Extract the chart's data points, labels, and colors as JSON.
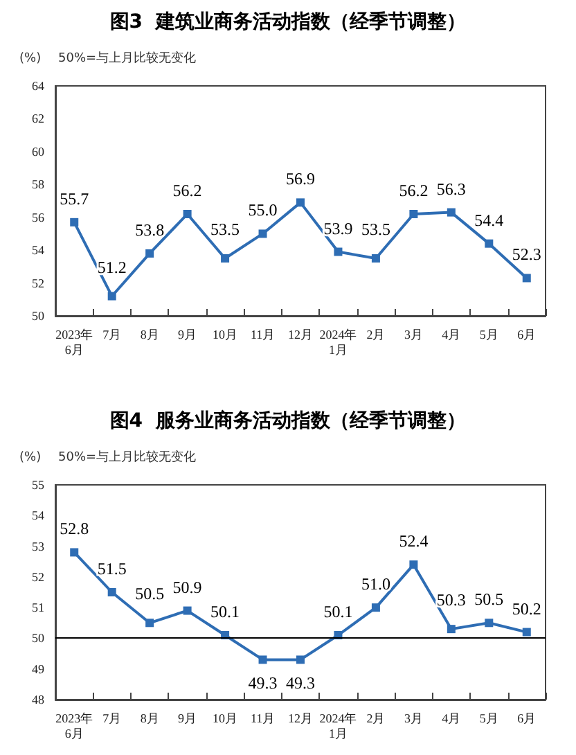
{
  "chart_data": [
    {
      "type": "line",
      "title": "图3  建筑业商务活动指数（经季节调整）",
      "ylabel": "(%)",
      "annotations": [
        "50%=与上月比较无变化"
      ],
      "categories": [
        "2023年\n6月",
        "7月",
        "8月",
        "9月",
        "10月",
        "11月",
        "12月",
        "2024年\n1月",
        "2月",
        "3月",
        "4月",
        "5月",
        "6月"
      ],
      "series": [
        {
          "color": "#2e6db4",
          "values": [
            55.7,
            51.2,
            53.8,
            56.2,
            53.5,
            55.0,
            56.9,
            53.9,
            53.5,
            56.2,
            56.3,
            54.4,
            52.3
          ],
          "value_labels": [
            "55.7",
            "51.2",
            "53.8",
            "56.2",
            "53.5",
            "55.0",
            "56.9",
            "53.9",
            "53.5",
            "56.2",
            "56.3",
            "54.4",
            "52.3"
          ]
        }
      ],
      "ylim": [
        50,
        64
      ],
      "yticks": [
        50,
        52,
        54,
        56,
        58,
        60,
        62,
        64
      ],
      "grid": false,
      "marker": "square",
      "line_style": "solid"
    },
    {
      "type": "line",
      "title": "图4  服务业商务活动指数（经季节调整）",
      "ylabel": "(%)",
      "annotations": [
        "50%=与上月比较无变化"
      ],
      "categories": [
        "2023年\n6月",
        "7月",
        "8月",
        "9月",
        "10月",
        "11月",
        "12月",
        "2024年\n1月",
        "2月",
        "3月",
        "4月",
        "5月",
        "6月"
      ],
      "series": [
        {
          "color": "#2e6db4",
          "values": [
            52.8,
            51.5,
            50.5,
            50.9,
            50.1,
            49.3,
            49.3,
            50.1,
            51.0,
            52.4,
            50.3,
            50.5,
            50.2
          ],
          "value_labels": [
            "52.8",
            "51.5",
            "50.5",
            "50.9",
            "50.1",
            "49.3",
            "49.3",
            "50.1",
            "51.0",
            "52.4",
            "50.3",
            "50.5",
            "50.2"
          ]
        }
      ],
      "ylim": [
        48,
        55
      ],
      "yticks": [
        48,
        49,
        50,
        51,
        52,
        53,
        54,
        55
      ],
      "ref_lines": [
        {
          "axis": "y",
          "value": 50,
          "color": "#000000"
        }
      ],
      "grid": false,
      "marker": "square",
      "line_style": "solid"
    }
  ]
}
